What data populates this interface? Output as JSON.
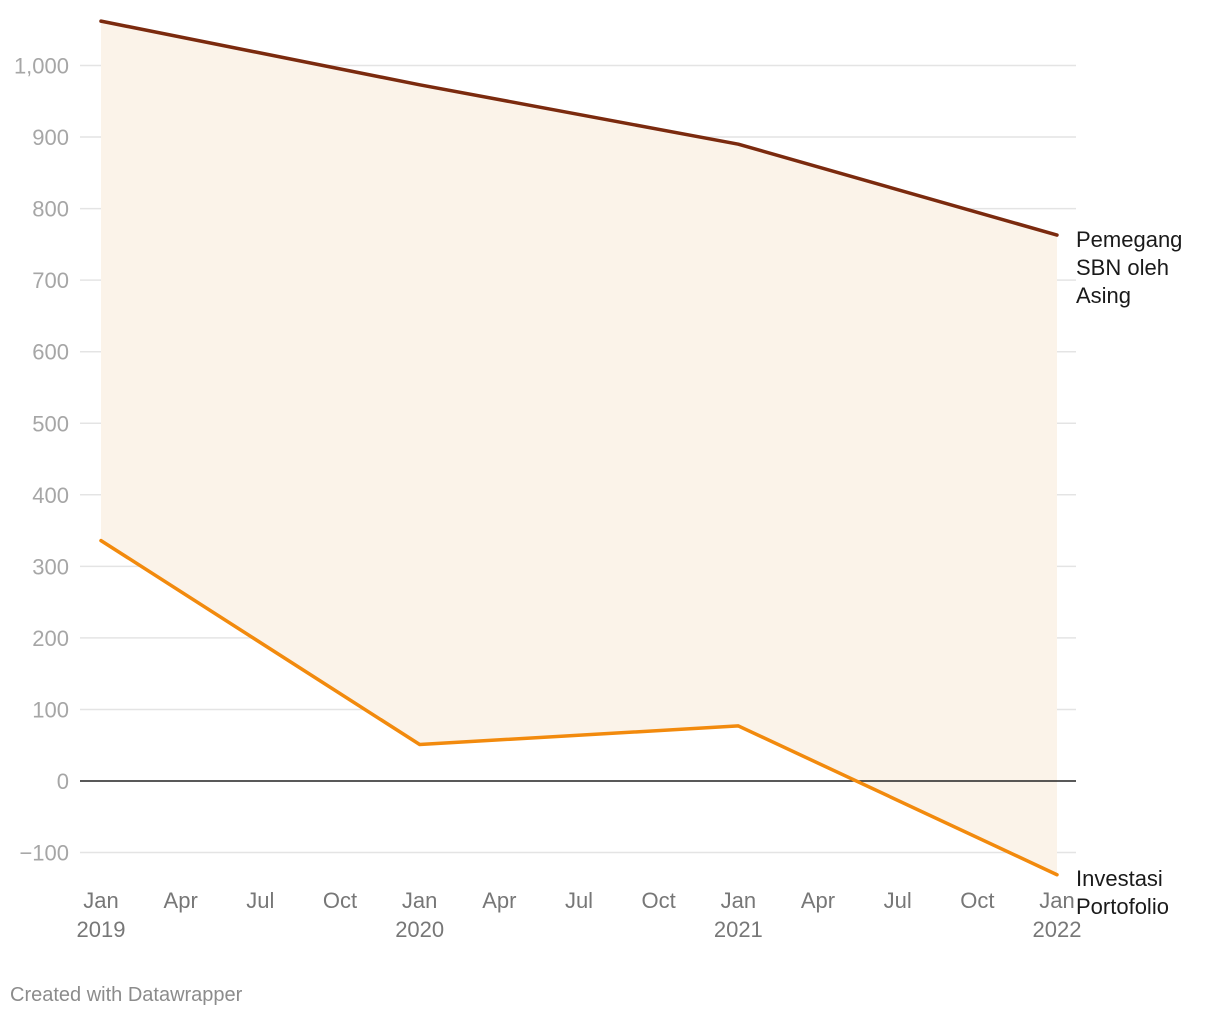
{
  "chart_data": {
    "type": "line",
    "title": "",
    "xlabel": "",
    "ylabel": "",
    "ylim": [
      -130,
      1060
    ],
    "grid": true,
    "fill_between_series": true,
    "x": [
      "2019-01",
      "2020-01",
      "2021-01",
      "2022-01"
    ],
    "series": [
      {
        "name": "Pemegang SBN oleh Asing",
        "label_lines": [
          "Pemegang",
          "SBN oleh",
          "Asing"
        ],
        "color": "#7b2a0e",
        "values": [
          1062,
          973,
          890,
          763
        ]
      },
      {
        "name": "Investasi Portofolio",
        "label_lines": [
          "Investasi",
          "Portofolio"
        ],
        "color": "#f28a0d",
        "values": [
          336,
          51,
          77,
          -131
        ]
      }
    ],
    "y_ticks": [
      {
        "value": 1000,
        "label": "1,000"
      },
      {
        "value": 900,
        "label": "900"
      },
      {
        "value": 800,
        "label": "800"
      },
      {
        "value": 700,
        "label": "700"
      },
      {
        "value": 600,
        "label": "600"
      },
      {
        "value": 500,
        "label": "500"
      },
      {
        "value": 400,
        "label": "400"
      },
      {
        "value": 300,
        "label": "300"
      },
      {
        "value": 200,
        "label": "200"
      },
      {
        "value": 100,
        "label": "100"
      },
      {
        "value": 0,
        "label": "0"
      },
      {
        "value": -100,
        "label": "−100"
      }
    ],
    "x_ticks": [
      {
        "value": "2019-01",
        "month": "Jan",
        "year": "2019"
      },
      {
        "value": "2019-04",
        "month": "Apr",
        "year": ""
      },
      {
        "value": "2019-07",
        "month": "Jul",
        "year": ""
      },
      {
        "value": "2019-10",
        "month": "Oct",
        "year": ""
      },
      {
        "value": "2020-01",
        "month": "Jan",
        "year": "2020"
      },
      {
        "value": "2020-04",
        "month": "Apr",
        "year": ""
      },
      {
        "value": "2020-07",
        "month": "Jul",
        "year": ""
      },
      {
        "value": "2020-10",
        "month": "Oct",
        "year": ""
      },
      {
        "value": "2021-01",
        "month": "Jan",
        "year": "2021"
      },
      {
        "value": "2021-04",
        "month": "Apr",
        "year": ""
      },
      {
        "value": "2021-07",
        "month": "Jul",
        "year": ""
      },
      {
        "value": "2021-10",
        "month": "Oct",
        "year": ""
      },
      {
        "value": "2022-01",
        "month": "Jan",
        "year": "2022"
      }
    ],
    "colors": {
      "fill": "#fbf3e9",
      "grid": "#e4e4e4",
      "zero_line": "#222222"
    }
  },
  "footer": {
    "credit": "Created with Datawrapper"
  }
}
